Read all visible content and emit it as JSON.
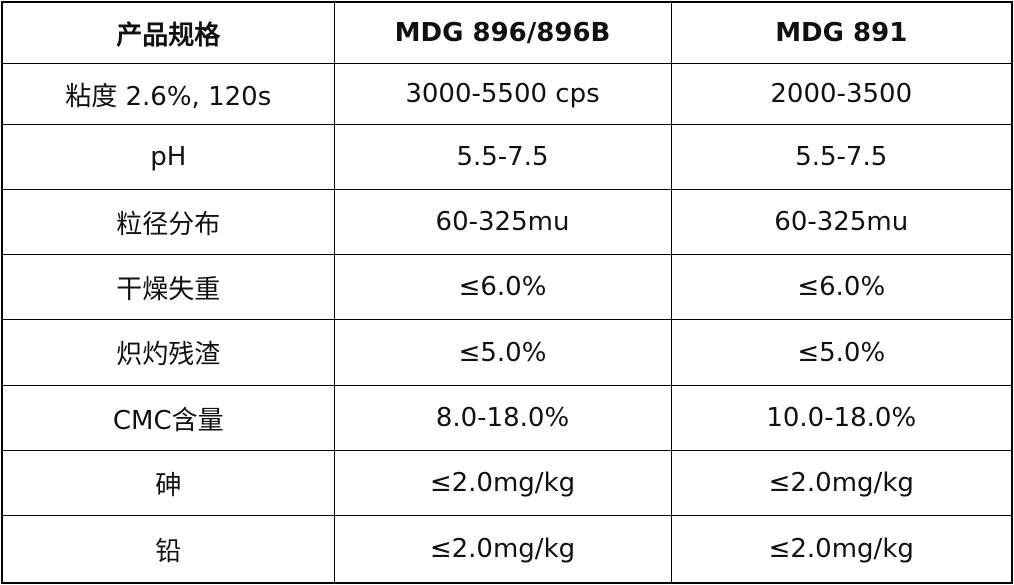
{
  "table": {
    "header": [
      "产品规格",
      "MDG 896/896B",
      "MDG 891"
    ],
    "rows": [
      [
        "粘度 2.6%, 120s",
        "3000-5500 cps",
        "2000-3500"
      ],
      [
        "pH",
        "5.5-7.5",
        "5.5-7.5"
      ],
      [
        "粒径分布",
        "60-325mu",
        "60-325mu"
      ],
      [
        "干燥失重",
        "≤6.0%",
        "≤6.0%"
      ],
      [
        "炽灼残渣",
        "≤5.0%",
        "≤5.0%"
      ],
      [
        "CMC含量",
        "8.0-18.0%",
        "10.0-18.0%"
      ],
      [
        "砷",
        "≤2.0mg/kg",
        "≤2.0mg/kg"
      ],
      [
        "铅",
        "≤2.0mg/kg",
        "≤2.0mg/kg"
      ]
    ]
  }
}
